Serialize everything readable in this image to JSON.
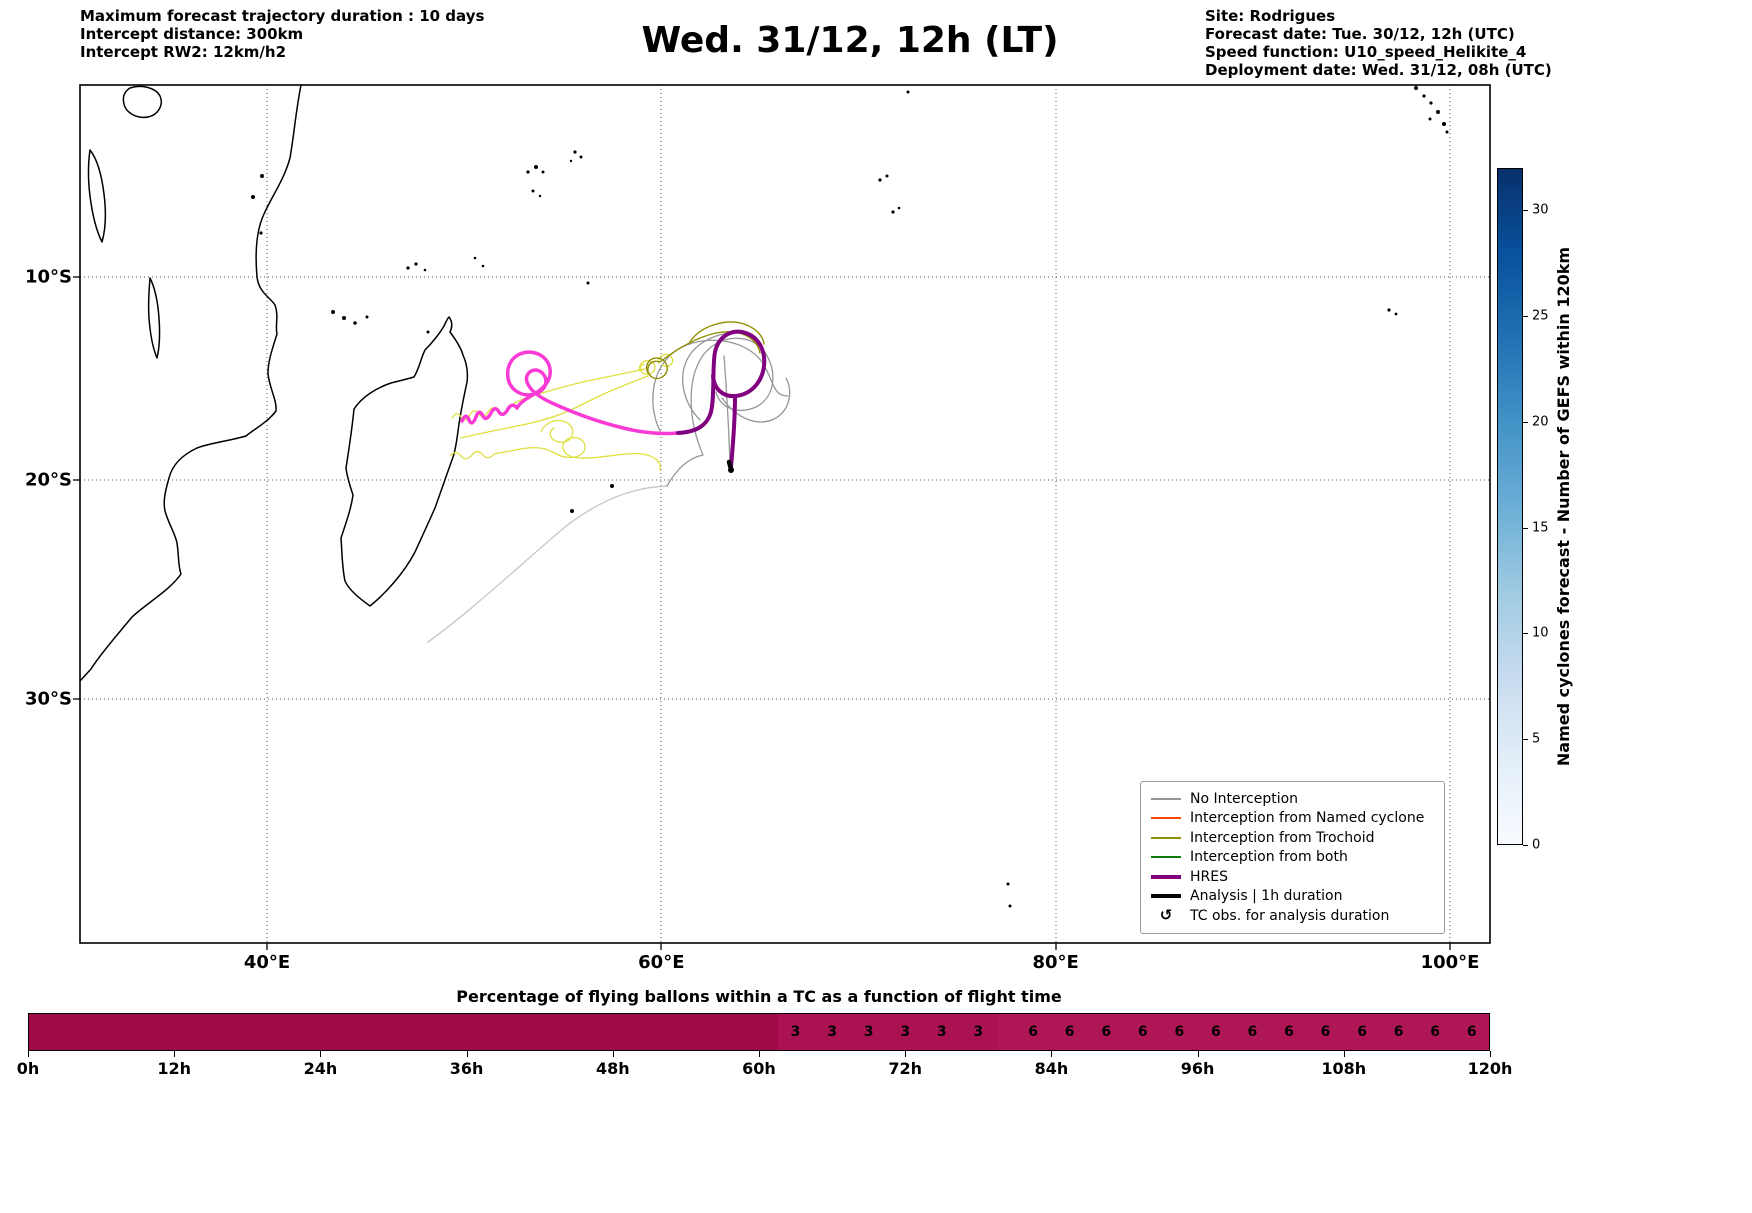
{
  "header": {
    "left_lines": [
      "Maximum forecast trajectory duration : 10 days",
      "Intercept distance: 300km",
      "Intercept RW2: 12km/h2"
    ],
    "title": "Wed. 31/12, 12h (LT)",
    "right_lines": [
      "Site: Rodrigues",
      "Forecast date: Tue. 30/12, 12h (UTC)",
      "Speed function: U10_speed_Helikite_4",
      "Deployment date: Wed. 31/12, 08h (UTC)"
    ]
  },
  "map": {
    "x_ticks": [
      {
        "label": "40°E",
        "lon": 40
      },
      {
        "label": "60°E",
        "lon": 60
      },
      {
        "label": "80°E",
        "lon": 80
      },
      {
        "label": "100°E",
        "lon": 100
      }
    ],
    "y_ticks": [
      {
        "label": "10°S",
        "lat": 10
      },
      {
        "label": "20°S",
        "lat": 20
      },
      {
        "label": "30°S",
        "lat": 30
      }
    ],
    "colors": {
      "gray": "#969696",
      "light_gray": "#c9c9c9",
      "yellow": "#dfdf3f",
      "olive": "#8f8f00",
      "magenta": "#fa3ad4",
      "purple": "#800080",
      "analysis": "#000000"
    }
  },
  "legend": {
    "items": [
      {
        "label": "No Interception",
        "color": "#969696",
        "lw": 2
      },
      {
        "label": "Interception from Named cyclone",
        "color": "#ff4500",
        "lw": 2
      },
      {
        "label": "Interception from Trochoid",
        "color": "#8f8f00",
        "lw": 2
      },
      {
        "label": "Interception from both",
        "color": "#0f7d0f",
        "lw": 2
      },
      {
        "label": "HRES",
        "color": "#800080",
        "lw": 4
      },
      {
        "label": "Analysis | 1h duration",
        "color": "#000000",
        "lw": 4
      },
      {
        "label": "TC obs. for analysis duration",
        "symbol": "↺",
        "color": "#000000"
      }
    ]
  },
  "colorbar": {
    "label": "Named cyclones forecast - Number of GEFS within 120km",
    "ticks": [
      0,
      5,
      10,
      15,
      20,
      25,
      30
    ],
    "vmax": 32,
    "colors": [
      "#f7fbff",
      "#e3eef8",
      "#c6dbef",
      "#9ecae1",
      "#6baed6",
      "#4292c6",
      "#2171b5",
      "#08519c",
      "#08306b"
    ]
  },
  "chart_data": [
    {
      "type": "line",
      "title": "Wed. 31/12, 12h (LT)",
      "description": "Forecast balloon trajectories over the south-west Indian Ocean around Madagascar; ensemble trajectories in gray (no interception), yellow, and olive (trochoid interception); thick magenta/purple HRES trajectory looping near 63°E and ending about 63°E / 20°S.",
      "x_axis": {
        "ticks": [
          "40°E",
          "60°E",
          "80°E",
          "100°E"
        ],
        "range_deg_east": [
          30.5,
          102
        ]
      },
      "y_axis": {
        "ticks": [
          "10°S",
          "20°S",
          "30°S"
        ],
        "range_deg_south": [
          1,
          41.5
        ]
      },
      "legend_position": "lower right",
      "grid": true,
      "series": [
        {
          "name": "No Interception",
          "color": "#969696"
        },
        {
          "name": "Interception from Named cyclone",
          "color": "#ff4500"
        },
        {
          "name": "Interception from Trochoid",
          "color": "#8f8f00"
        },
        {
          "name": "Interception from both",
          "color": "#0f7d0f"
        },
        {
          "name": "HRES",
          "color": "#800080"
        },
        {
          "name": "Analysis | 1h duration",
          "color": "#000000"
        }
      ]
    },
    {
      "type": "heatmap",
      "title": "Percentage of flying ballons within a TC as a function of flight time",
      "x_ticks": [
        "0h",
        "12h",
        "24h",
        "36h",
        "48h",
        "60h",
        "72h",
        "84h",
        "96h",
        "108h",
        "120h"
      ],
      "range_hours": [
        0,
        120
      ],
      "bin_hours": 3,
      "bar_color": "#a30c4b",
      "regions": [
        {
          "t0": 0,
          "t1": 61.5,
          "color": "#a00a47"
        },
        {
          "t0": 61.5,
          "t1": 79.5,
          "color": "#ab1252"
        },
        {
          "t0": 79.5,
          "t1": 120,
          "color": "#af1656"
        }
      ],
      "annotations": [
        {
          "t": 63,
          "value": 3
        },
        {
          "t": 66,
          "value": 3
        },
        {
          "t": 69,
          "value": 3
        },
        {
          "t": 72,
          "value": 3
        },
        {
          "t": 75,
          "value": 3
        },
        {
          "t": 78,
          "value": 3
        },
        {
          "t": 82.5,
          "value": 6
        },
        {
          "t": 85.5,
          "value": 6
        },
        {
          "t": 88.5,
          "value": 6
        },
        {
          "t": 91.5,
          "value": 6
        },
        {
          "t": 94.5,
          "value": 6
        },
        {
          "t": 97.5,
          "value": 6
        },
        {
          "t": 100.5,
          "value": 6
        },
        {
          "t": 103.5,
          "value": 6
        },
        {
          "t": 106.5,
          "value": 6
        },
        {
          "t": 109.5,
          "value": 6
        },
        {
          "t": 112.5,
          "value": 6
        },
        {
          "t": 115.5,
          "value": 6
        },
        {
          "t": 118.5,
          "value": 6
        }
      ]
    }
  ]
}
